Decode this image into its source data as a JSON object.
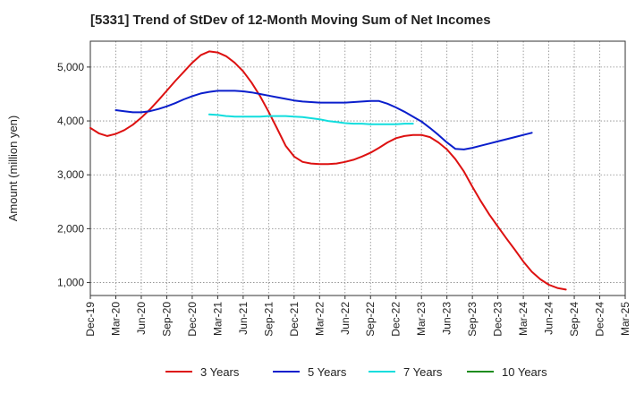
{
  "chart_data": {
    "type": "line",
    "title": "[5331]  Trend of StDev of 12-Month Moving Sum of Net Incomes",
    "ylabel": "Amount (million yen)",
    "xlabel": "",
    "ylim": [
      760,
      5480
    ],
    "yticks": [
      1000,
      2000,
      3000,
      4000,
      5000
    ],
    "ytick_labels": [
      "1,000",
      "2,000",
      "3,000",
      "4,000",
      "5,000"
    ],
    "xticks": [
      "Dec-19",
      "Mar-20",
      "Jun-20",
      "Sep-20",
      "Dec-20",
      "Mar-21",
      "Jun-21",
      "Sep-21",
      "Dec-21",
      "Mar-22",
      "Jun-22",
      "Sep-22",
      "Dec-22",
      "Mar-23",
      "Jun-23",
      "Sep-23",
      "Dec-23",
      "Mar-24",
      "Jun-24",
      "Sep-24",
      "Dec-24",
      "Mar-25"
    ],
    "grid": true,
    "legend_position": "bottom",
    "series": [
      {
        "name": "3 Years",
        "color": "#dd1111",
        "points": [
          [
            "Dec-19",
            3870
          ],
          [
            "Jan-20",
            3770
          ],
          [
            "Feb-20",
            3720
          ],
          [
            "Mar-20",
            3760
          ],
          [
            "Apr-20",
            3830
          ],
          [
            "May-20",
            3930
          ],
          [
            "Jun-20",
            4060
          ],
          [
            "Jul-20",
            4210
          ],
          [
            "Aug-20",
            4380
          ],
          [
            "Sep-20",
            4560
          ],
          [
            "Oct-20",
            4740
          ],
          [
            "Nov-20",
            4910
          ],
          [
            "Dec-20",
            5080
          ],
          [
            "Jan-21",
            5220
          ],
          [
            "Feb-21",
            5290
          ],
          [
            "Mar-21",
            5270
          ],
          [
            "Apr-21",
            5200
          ],
          [
            "May-21",
            5080
          ],
          [
            "Jun-21",
            4920
          ],
          [
            "Jul-21",
            4710
          ],
          [
            "Aug-21",
            4460
          ],
          [
            "Sep-21",
            4170
          ],
          [
            "Oct-21",
            3860
          ],
          [
            "Nov-21",
            3540
          ],
          [
            "Dec-21",
            3340
          ],
          [
            "Jan-22",
            3240
          ],
          [
            "Feb-22",
            3210
          ],
          [
            "Mar-22",
            3200
          ],
          [
            "Apr-22",
            3200
          ],
          [
            "May-22",
            3210
          ],
          [
            "Jun-22",
            3240
          ],
          [
            "Jul-22",
            3280
          ],
          [
            "Aug-22",
            3340
          ],
          [
            "Sep-22",
            3410
          ],
          [
            "Oct-22",
            3500
          ],
          [
            "Nov-22",
            3600
          ],
          [
            "Dec-22",
            3680
          ],
          [
            "Jan-23",
            3720
          ],
          [
            "Feb-23",
            3740
          ],
          [
            "Mar-23",
            3740
          ],
          [
            "Apr-23",
            3700
          ],
          [
            "May-23",
            3600
          ],
          [
            "Jun-23",
            3470
          ],
          [
            "Jul-23",
            3290
          ],
          [
            "Aug-23",
            3060
          ],
          [
            "Sep-23",
            2780
          ],
          [
            "Oct-23",
            2510
          ],
          [
            "Nov-23",
            2260
          ],
          [
            "Dec-23",
            2040
          ],
          [
            "Jan-24",
            1820
          ],
          [
            "Feb-24",
            1610
          ],
          [
            "Mar-24",
            1390
          ],
          [
            "Apr-24",
            1200
          ],
          [
            "May-24",
            1060
          ],
          [
            "Jun-24",
            960
          ],
          [
            "Jul-24",
            900
          ],
          [
            "Aug-24",
            870
          ]
        ]
      },
      {
        "name": "5 Years",
        "color": "#0a1ecc",
        "points": [
          [
            "Mar-20",
            4200
          ],
          [
            "Apr-20",
            4180
          ],
          [
            "May-20",
            4160
          ],
          [
            "Jun-20",
            4160
          ],
          [
            "Jul-20",
            4180
          ],
          [
            "Aug-20",
            4220
          ],
          [
            "Sep-20",
            4270
          ],
          [
            "Oct-20",
            4330
          ],
          [
            "Nov-20",
            4400
          ],
          [
            "Dec-20",
            4460
          ],
          [
            "Jan-21",
            4510
          ],
          [
            "Feb-21",
            4540
          ],
          [
            "Mar-21",
            4560
          ],
          [
            "Apr-21",
            4560
          ],
          [
            "May-21",
            4560
          ],
          [
            "Jun-21",
            4550
          ],
          [
            "Jul-21",
            4530
          ],
          [
            "Aug-21",
            4500
          ],
          [
            "Sep-21",
            4470
          ],
          [
            "Oct-21",
            4440
          ],
          [
            "Nov-21",
            4410
          ],
          [
            "Dec-21",
            4380
          ],
          [
            "Jan-22",
            4360
          ],
          [
            "Feb-22",
            4350
          ],
          [
            "Mar-22",
            4340
          ],
          [
            "Apr-22",
            4340
          ],
          [
            "May-22",
            4340
          ],
          [
            "Jun-22",
            4340
          ],
          [
            "Jul-22",
            4350
          ],
          [
            "Aug-22",
            4360
          ],
          [
            "Sep-22",
            4370
          ],
          [
            "Oct-22",
            4370
          ],
          [
            "Nov-22",
            4320
          ],
          [
            "Dec-22",
            4250
          ],
          [
            "Jan-23",
            4170
          ],
          [
            "Feb-23",
            4080
          ],
          [
            "Mar-23",
            3990
          ],
          [
            "Apr-23",
            3870
          ],
          [
            "May-23",
            3740
          ],
          [
            "Jun-23",
            3600
          ],
          [
            "Jul-23",
            3480
          ],
          [
            "Aug-23",
            3470
          ],
          [
            "Sep-23",
            3500
          ],
          [
            "Oct-23",
            3540
          ],
          [
            "Nov-23",
            3580
          ],
          [
            "Dec-23",
            3620
          ],
          [
            "Jan-24",
            3660
          ],
          [
            "Feb-24",
            3700
          ],
          [
            "Mar-24",
            3740
          ],
          [
            "Apr-24",
            3780
          ]
        ]
      },
      {
        "name": "7 Years",
        "color": "#11dddd",
        "points": [
          [
            "Feb-21",
            4120
          ],
          [
            "Mar-21",
            4110
          ],
          [
            "Apr-21",
            4090
          ],
          [
            "May-21",
            4080
          ],
          [
            "Jun-21",
            4080
          ],
          [
            "Jul-21",
            4080
          ],
          [
            "Aug-21",
            4080
          ],
          [
            "Sep-21",
            4090
          ],
          [
            "Oct-21",
            4090
          ],
          [
            "Nov-21",
            4090
          ],
          [
            "Dec-21",
            4080
          ],
          [
            "Jan-22",
            4070
          ],
          [
            "Feb-22",
            4050
          ],
          [
            "Mar-22",
            4030
          ],
          [
            "Apr-22",
            4000
          ],
          [
            "May-22",
            3980
          ],
          [
            "Jun-22",
            3960
          ],
          [
            "Jul-22",
            3950
          ],
          [
            "Aug-22",
            3950
          ],
          [
            "Sep-22",
            3940
          ],
          [
            "Oct-22",
            3940
          ],
          [
            "Nov-22",
            3940
          ],
          [
            "Dec-22",
            3940
          ],
          [
            "Jan-23",
            3950
          ],
          [
            "Feb-23",
            3950
          ]
        ]
      },
      {
        "name": "10 Years",
        "color": "#1e8c1e",
        "points": []
      }
    ]
  }
}
